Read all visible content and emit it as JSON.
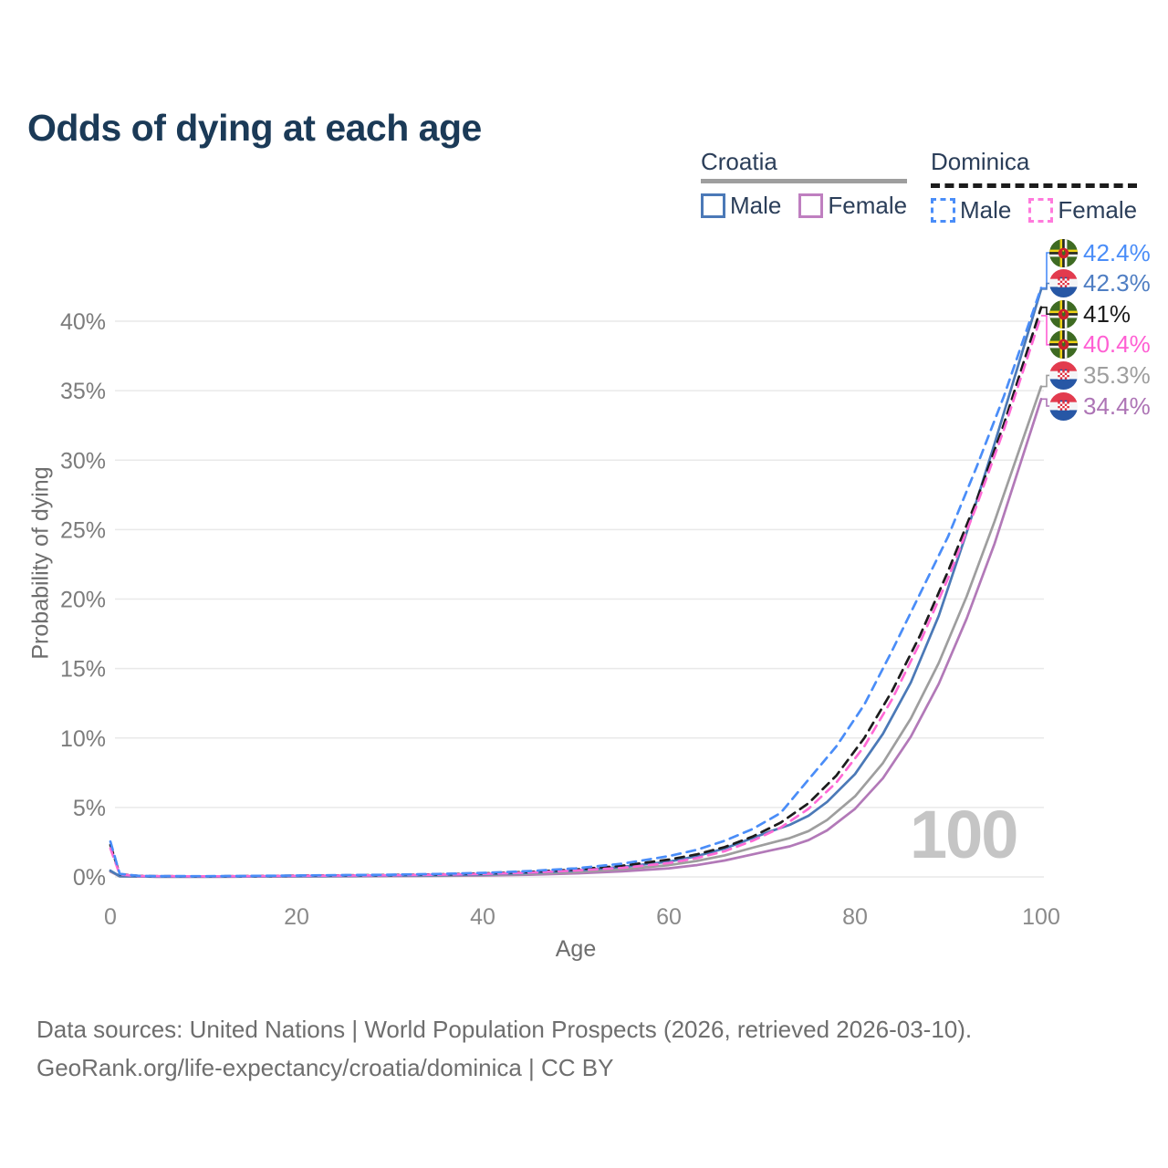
{
  "title": "Odds of dying at each age",
  "watermark": "100",
  "legend": {
    "groups": [
      {
        "country": "Croatia",
        "line_style": "solid",
        "underline_color": "#9e9e9e",
        "items": [
          {
            "label": "Male",
            "color": "#4b79b7",
            "dashed": false
          },
          {
            "label": "Female",
            "color": "#bf7fc0",
            "dashed": false
          }
        ]
      },
      {
        "country": "Dominica",
        "line_style": "dashed",
        "underline_color": "#1c1c1c",
        "items": [
          {
            "label": "Male",
            "color": "#4a8df8",
            "dashed": true
          },
          {
            "label": "Female",
            "color": "#ff7adc",
            "dashed": true
          }
        ]
      }
    ]
  },
  "chart_data": {
    "type": "line",
    "title": "Odds of dying at each age",
    "xlabel": "Age",
    "ylabel": "Probability of dying",
    "xlim": [
      0,
      100
    ],
    "ylim": [
      0,
      43
    ],
    "grid": true,
    "x_ticks": [
      0,
      20,
      40,
      60,
      80,
      100
    ],
    "y_ticks": [
      {
        "pct": 0,
        "label": "0%"
      },
      {
        "pct": 5,
        "label": "5%"
      },
      {
        "pct": 10,
        "label": "10%"
      },
      {
        "pct": 15,
        "label": "15%"
      },
      {
        "pct": 20,
        "label": "20%"
      },
      {
        "pct": 25,
        "label": "25%"
      },
      {
        "pct": 30,
        "label": "30%"
      },
      {
        "pct": 35,
        "label": "35%"
      },
      {
        "pct": 40,
        "label": "40%"
      }
    ],
    "series": [
      {
        "name": "Croatia Female",
        "country": "Croatia",
        "sex": "Female",
        "color": "#b279b8",
        "dashed": false,
        "points": [
          [
            0,
            0.38
          ],
          [
            1,
            0.04
          ],
          [
            5,
            0.01
          ],
          [
            10,
            0.01
          ],
          [
            15,
            0.02
          ],
          [
            20,
            0.03
          ],
          [
            25,
            0.04
          ],
          [
            30,
            0.05
          ],
          [
            35,
            0.07
          ],
          [
            40,
            0.1
          ],
          [
            45,
            0.16
          ],
          [
            50,
            0.25
          ],
          [
            55,
            0.4
          ],
          [
            60,
            0.62
          ],
          [
            63,
            0.85
          ],
          [
            66,
            1.18
          ],
          [
            69,
            1.62
          ],
          [
            71,
            1.92
          ],
          [
            73,
            2.2
          ],
          [
            75,
            2.65
          ],
          [
            77,
            3.35
          ],
          [
            80,
            4.9
          ],
          [
            83,
            7.1
          ],
          [
            86,
            10.1
          ],
          [
            89,
            13.9
          ],
          [
            92,
            18.6
          ],
          [
            95,
            24.0
          ],
          [
            100,
            34.4
          ]
        ]
      },
      {
        "name": "Croatia Both sexes",
        "country": "Croatia",
        "sex": "Both",
        "color": "#9e9e9e",
        "dashed": false,
        "points": [
          [
            0,
            0.42
          ],
          [
            1,
            0.04
          ],
          [
            5,
            0.01
          ],
          [
            10,
            0.01
          ],
          [
            15,
            0.02
          ],
          [
            20,
            0.04
          ],
          [
            25,
            0.05
          ],
          [
            30,
            0.07
          ],
          [
            35,
            0.09
          ],
          [
            40,
            0.14
          ],
          [
            45,
            0.22
          ],
          [
            50,
            0.35
          ],
          [
            55,
            0.55
          ],
          [
            60,
            0.85
          ],
          [
            63,
            1.15
          ],
          [
            66,
            1.55
          ],
          [
            69,
            2.1
          ],
          [
            71,
            2.45
          ],
          [
            73,
            2.8
          ],
          [
            75,
            3.3
          ],
          [
            77,
            4.1
          ],
          [
            80,
            5.8
          ],
          [
            83,
            8.2
          ],
          [
            86,
            11.4
          ],
          [
            89,
            15.4
          ],
          [
            92,
            20.2
          ],
          [
            95,
            25.6
          ],
          [
            100,
            35.3
          ]
        ]
      },
      {
        "name": "Croatia Male",
        "country": "Croatia",
        "sex": "Male",
        "color": "#4b79b7",
        "dashed": false,
        "points": [
          [
            0,
            0.45
          ],
          [
            1,
            0.05
          ],
          [
            5,
            0.01
          ],
          [
            10,
            0.01
          ],
          [
            15,
            0.03
          ],
          [
            20,
            0.06
          ],
          [
            25,
            0.07
          ],
          [
            30,
            0.09
          ],
          [
            35,
            0.12
          ],
          [
            40,
            0.18
          ],
          [
            45,
            0.28
          ],
          [
            50,
            0.45
          ],
          [
            55,
            0.72
          ],
          [
            60,
            1.1
          ],
          [
            63,
            1.5
          ],
          [
            66,
            2.05
          ],
          [
            69,
            2.8
          ],
          [
            71,
            3.3
          ],
          [
            73,
            3.75
          ],
          [
            75,
            4.4
          ],
          [
            77,
            5.4
          ],
          [
            80,
            7.4
          ],
          [
            83,
            10.3
          ],
          [
            86,
            14.0
          ],
          [
            89,
            18.8
          ],
          [
            92,
            24.8
          ],
          [
            95,
            31.2
          ],
          [
            100,
            42.3
          ]
        ]
      },
      {
        "name": "Dominica Both sexes",
        "country": "Dominica",
        "sex": "Both",
        "color": "#1c1c1c",
        "dashed": true,
        "points": [
          [
            0,
            2.3
          ],
          [
            1,
            0.2
          ],
          [
            3,
            0.07
          ],
          [
            5,
            0.05
          ],
          [
            10,
            0.04
          ],
          [
            15,
            0.06
          ],
          [
            20,
            0.09
          ],
          [
            25,
            0.11
          ],
          [
            30,
            0.14
          ],
          [
            35,
            0.18
          ],
          [
            40,
            0.25
          ],
          [
            45,
            0.36
          ],
          [
            50,
            0.53
          ],
          [
            55,
            0.8
          ],
          [
            60,
            1.25
          ],
          [
            63,
            1.62
          ],
          [
            66,
            2.15
          ],
          [
            69,
            2.9
          ],
          [
            72,
            3.9
          ],
          [
            75,
            5.3
          ],
          [
            78,
            7.3
          ],
          [
            81,
            10.0
          ],
          [
            84,
            13.4
          ],
          [
            87,
            17.4
          ],
          [
            90,
            22.0
          ],
          [
            93,
            27.0
          ],
          [
            96,
            32.6
          ],
          [
            100,
            41.0
          ]
        ]
      },
      {
        "name": "Dominica Female",
        "country": "Dominica",
        "sex": "Female",
        "color": "#ff6ad5",
        "dashed": true,
        "points": [
          [
            0,
            2.05
          ],
          [
            1,
            0.18
          ],
          [
            3,
            0.06
          ],
          [
            5,
            0.05
          ],
          [
            10,
            0.04
          ],
          [
            15,
            0.05
          ],
          [
            20,
            0.08
          ],
          [
            25,
            0.1
          ],
          [
            30,
            0.12
          ],
          [
            35,
            0.16
          ],
          [
            40,
            0.22
          ],
          [
            45,
            0.31
          ],
          [
            50,
            0.46
          ],
          [
            55,
            0.65
          ],
          [
            60,
            1.0
          ],
          [
            63,
            1.35
          ],
          [
            66,
            1.85
          ],
          [
            69,
            2.6
          ],
          [
            72,
            3.55
          ],
          [
            75,
            4.9
          ],
          [
            78,
            6.8
          ],
          [
            81,
            9.4
          ],
          [
            84,
            12.8
          ],
          [
            87,
            16.9
          ],
          [
            90,
            21.5
          ],
          [
            93,
            26.6
          ],
          [
            96,
            32.2
          ],
          [
            100,
            40.4
          ]
        ]
      },
      {
        "name": "Dominica Male",
        "country": "Dominica",
        "sex": "Male",
        "color": "#4a8df8",
        "dashed": true,
        "points": [
          [
            0,
            2.55
          ],
          [
            1,
            0.22
          ],
          [
            3,
            0.08
          ],
          [
            5,
            0.06
          ],
          [
            10,
            0.05
          ],
          [
            15,
            0.07
          ],
          [
            20,
            0.1
          ],
          [
            25,
            0.13
          ],
          [
            30,
            0.16
          ],
          [
            35,
            0.21
          ],
          [
            40,
            0.29
          ],
          [
            45,
            0.42
          ],
          [
            50,
            0.62
          ],
          [
            55,
            0.95
          ],
          [
            60,
            1.5
          ],
          [
            63,
            1.95
          ],
          [
            66,
            2.6
          ],
          [
            69,
            3.45
          ],
          [
            72,
            4.6
          ],
          [
            75,
            7.0
          ],
          [
            78,
            9.4
          ],
          [
            81,
            12.4
          ],
          [
            84,
            16.3
          ],
          [
            87,
            20.4
          ],
          [
            90,
            24.5
          ],
          [
            93,
            29.4
          ],
          [
            96,
            34.6
          ],
          [
            100,
            42.4
          ]
        ]
      }
    ]
  },
  "endpoints": [
    {
      "value": "42.4%",
      "series": "Dominica Male",
      "flag": "dominica",
      "color": "#4a8df8",
      "end_pct": 42.4
    },
    {
      "value": "42.3%",
      "series": "Croatia Male",
      "flag": "croatia",
      "color": "#4f7ec3",
      "end_pct": 42.3
    },
    {
      "value": "41%",
      "series": "Dominica Both sexes",
      "flag": "dominica",
      "color": "#1c1c1c",
      "end_pct": 41
    },
    {
      "value": "40.4%",
      "series": "Dominica Female",
      "flag": "dominica",
      "color": "#ff5fd3",
      "end_pct": 40.4
    },
    {
      "value": "35.3%",
      "series": "Croatia Both sexes",
      "flag": "croatia",
      "color": "#9e9e9e",
      "end_pct": 35.3
    },
    {
      "value": "34.4%",
      "series": "Croatia Female",
      "flag": "croatia",
      "color": "#ad74b5",
      "end_pct": 34.4
    }
  ],
  "footer": {
    "line1": "Data sources: United Nations | World Population Prospects (2026, retrieved 2026-03-10).",
    "line2": "GeoRank.org/life-expectancy/croatia/dominica | CC BY"
  }
}
